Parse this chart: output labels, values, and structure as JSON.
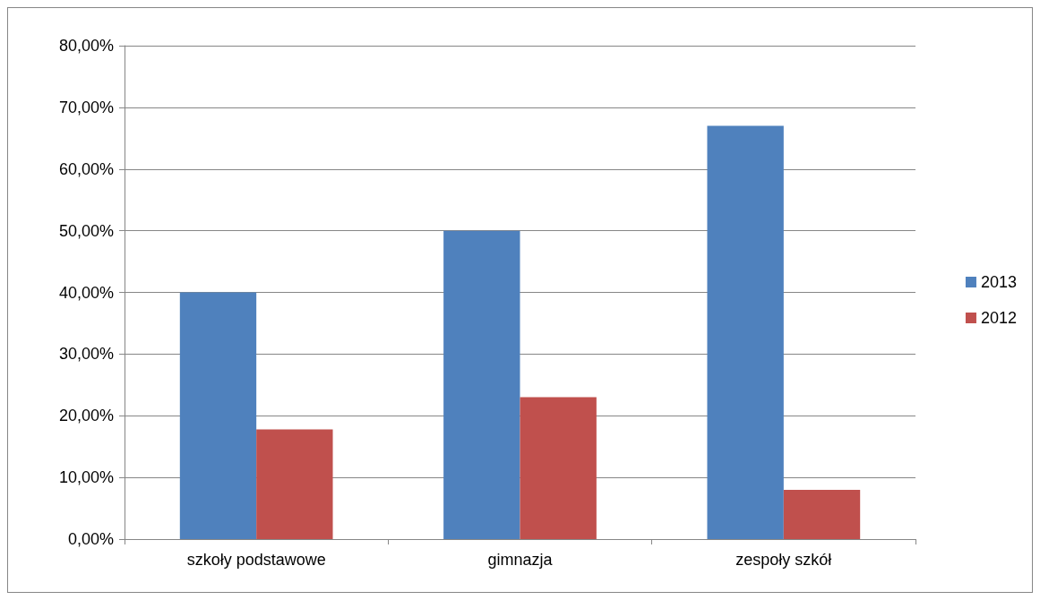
{
  "chart_data": {
    "type": "bar",
    "categories": [
      "szkoły podstawowe",
      "gimnazja",
      "zespoły szkół"
    ],
    "series": [
      {
        "name": "2013",
        "color": "#4f81bd",
        "values": [
          40,
          50,
          67
        ]
      },
      {
        "name": "2012",
        "color": "#c0504d",
        "values": [
          17.8,
          23,
          8
        ]
      }
    ],
    "ylim": [
      0,
      80
    ],
    "yticks": [
      {
        "value": 0,
        "label": "0,00%"
      },
      {
        "value": 10,
        "label": "10,00%"
      },
      {
        "value": 20,
        "label": "20,00%"
      },
      {
        "value": 30,
        "label": "30,00%"
      },
      {
        "value": 40,
        "label": "40,00%"
      },
      {
        "value": 50,
        "label": "50,00%"
      },
      {
        "value": 60,
        "label": "60,00%"
      },
      {
        "value": 70,
        "label": "70,00%"
      },
      {
        "value": 80,
        "label": "80,00%"
      }
    ],
    "grid": "y",
    "legend": "right"
  }
}
